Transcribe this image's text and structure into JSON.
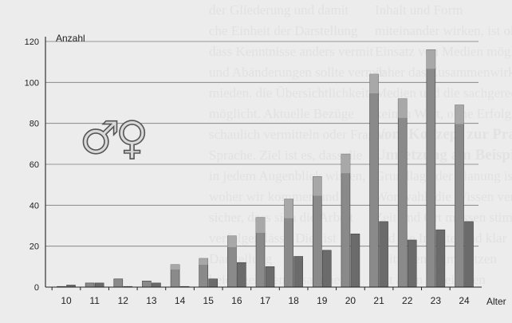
{
  "background_text": {
    "lines": [
      "der Gliederung und damit",
      "che Einheit der Darstellung",
      "dass Kenntnisse anders vermit",
      "und Abänderungen sollte vermie",
      "mieden. die Übersichtlichkeit",
      "möglicht. Aktuelle Bezüge",
      "schaulich vermitteln oder Fragen",
      "Sprache. Ziel ist es, dass die",
      "in jedem Augenblick wissen,",
      "woher wir kommen und",
      "sicher, dass sich die Arbeit",
      "verfolgen lässt. Dies ist",
      "Darstellung",
      "beide gehören zusammen"
    ],
    "right_lines": [
      "Inhalt und Form",
      "miteinander wirken, ist ohne",
      "Einsatz von Medien möglich,",
      "daher das Zusammenwirken der",
      "Medien und die sachgerechte",
      "keinen Wert, ohne Erfolg.",
      "Vom Konzept zur Praxis",
      "Umsetzung am Beispiel",
      "Grundlage der Planung ist die",
      "Wortwahl, die Wissen vermittelt",
      "Zeit und Ort müssen stimmen",
      "und die Inhalte sind klar",
      "Leitfaden beim Setzen",
      "mit allen Beteiligten"
    ]
  },
  "chart_data": {
    "type": "bar",
    "ylabel": "Anzahl",
    "xlabel": "Alter",
    "ylim": [
      0,
      120
    ],
    "yticks": [
      0,
      20,
      40,
      60,
      80,
      100,
      120
    ],
    "categories": [
      "10",
      "11",
      "12",
      "13",
      "14",
      "15",
      "16",
      "17",
      "18",
      "19",
      "20",
      "21",
      "22",
      "23",
      "24"
    ],
    "series": [
      {
        "values": [
          0,
          2,
          4,
          3,
          11,
          14,
          25,
          34,
          43,
          54,
          65,
          104,
          92,
          116,
          89
        ],
        "color": "#8a8a8a"
      },
      {
        "values": [
          1,
          2,
          0,
          2,
          0,
          4,
          12,
          10,
          15,
          18,
          26,
          32,
          23,
          28,
          32
        ],
        "color": "#6b6b6b"
      }
    ],
    "symbols": {
      "male": "♂",
      "female": "♀"
    }
  }
}
